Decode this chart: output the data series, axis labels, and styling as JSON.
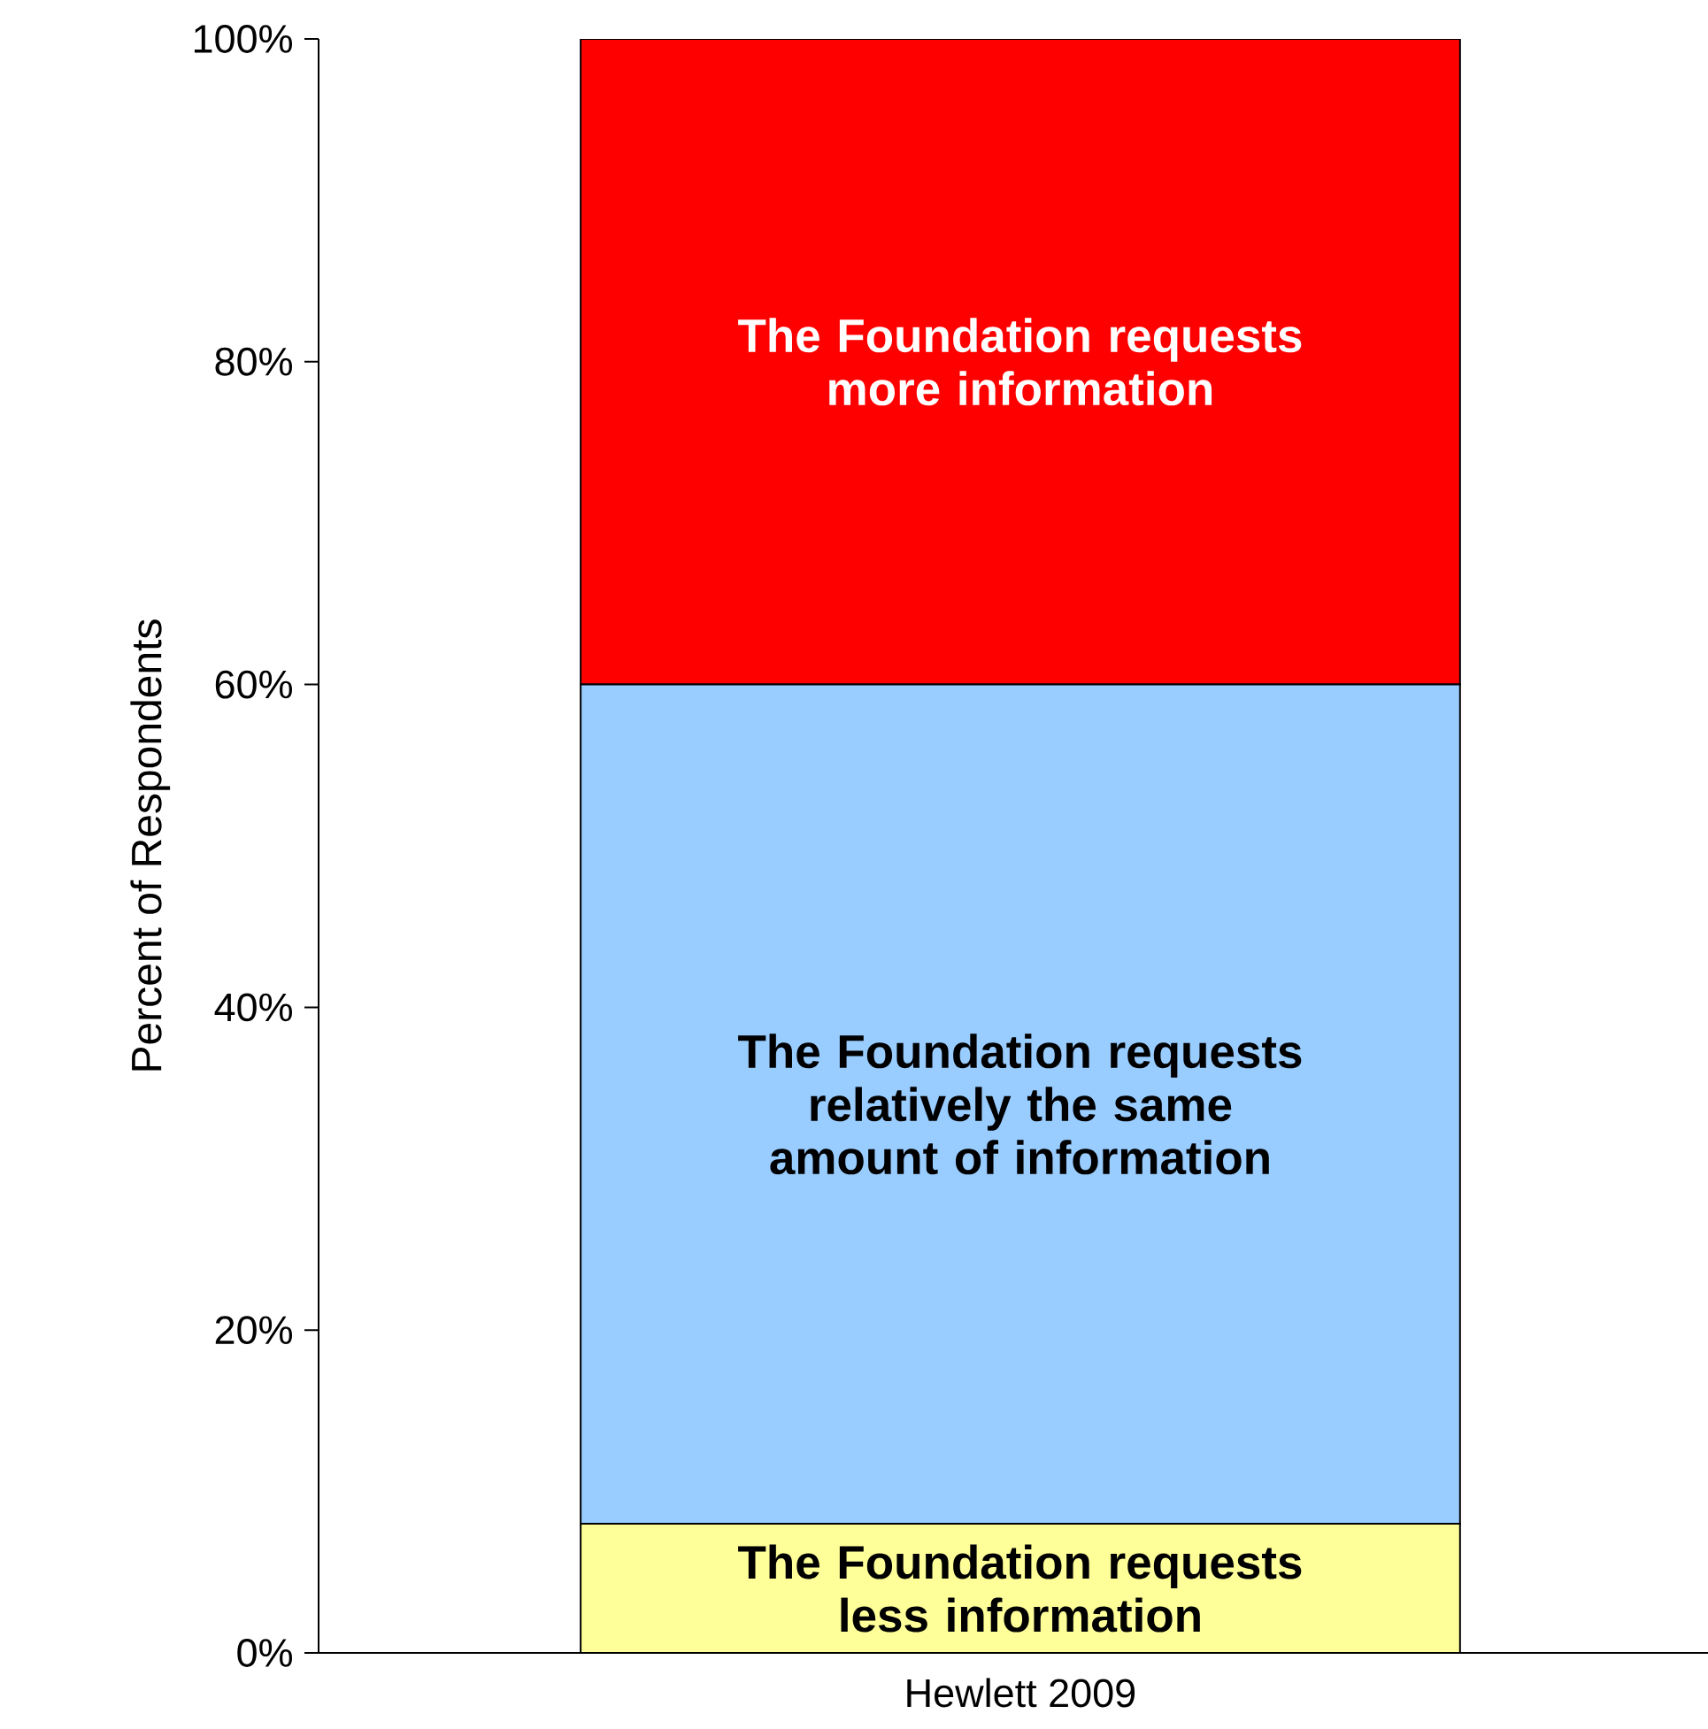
{
  "chart_data": {
    "type": "bar",
    "stacked": true,
    "ylabel": "Percent of Respondents",
    "categories": [
      "Hewlett 2009"
    ],
    "series": [
      {
        "name": "The Foundation requests less information",
        "color": "#ffff99",
        "values": [
          8
        ]
      },
      {
        "name": "The Foundation requests relatively the same amount of information",
        "color": "#99ccff",
        "values": [
          52
        ]
      },
      {
        "name": "The Foundation requests more information",
        "color": "#ff0000",
        "values": [
          40
        ]
      }
    ],
    "ylim": [
      0,
      100
    ],
    "yticks": [
      {
        "value": 0,
        "label": "0%"
      },
      {
        "value": 20,
        "label": "20%"
      },
      {
        "value": 40,
        "label": "40%"
      },
      {
        "value": 60,
        "label": "60%"
      },
      {
        "value": 80,
        "label": "80%"
      },
      {
        "value": 100,
        "label": "100%"
      }
    ]
  }
}
